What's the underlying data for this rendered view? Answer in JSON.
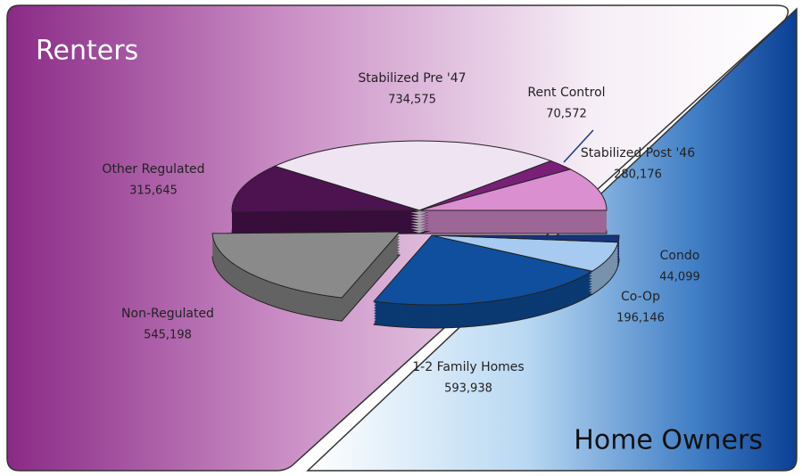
{
  "chart_data": [
    {
      "type": "pie",
      "title": "Renters",
      "categories": [
        "Stabilized Post '46",
        "Rent Control",
        "Stabilized Pre '47",
        "Other Regulated",
        "Non-Regulated"
      ],
      "values": [
        280176,
        70572,
        734575,
        315645,
        545198
      ],
      "value_labels": [
        "280,176",
        "70,572",
        "734,575",
        "315,645",
        "545,198"
      ],
      "colors": [
        "#d98fd0",
        "#7a1f78",
        "#eee4f2",
        "#4d1250",
        "#8a8a8a"
      ]
    },
    {
      "type": "pie",
      "title": "Home Owners",
      "categories": [
        "1-2 Family Homes",
        "Co-Op",
        "Condo"
      ],
      "values": [
        593938,
        196146,
        44099
      ],
      "value_labels": [
        "593,938",
        "196,146",
        "44,099"
      ],
      "colors": [
        "#0f4f9e",
        "#a6caf0",
        "#16337e"
      ]
    }
  ]
}
